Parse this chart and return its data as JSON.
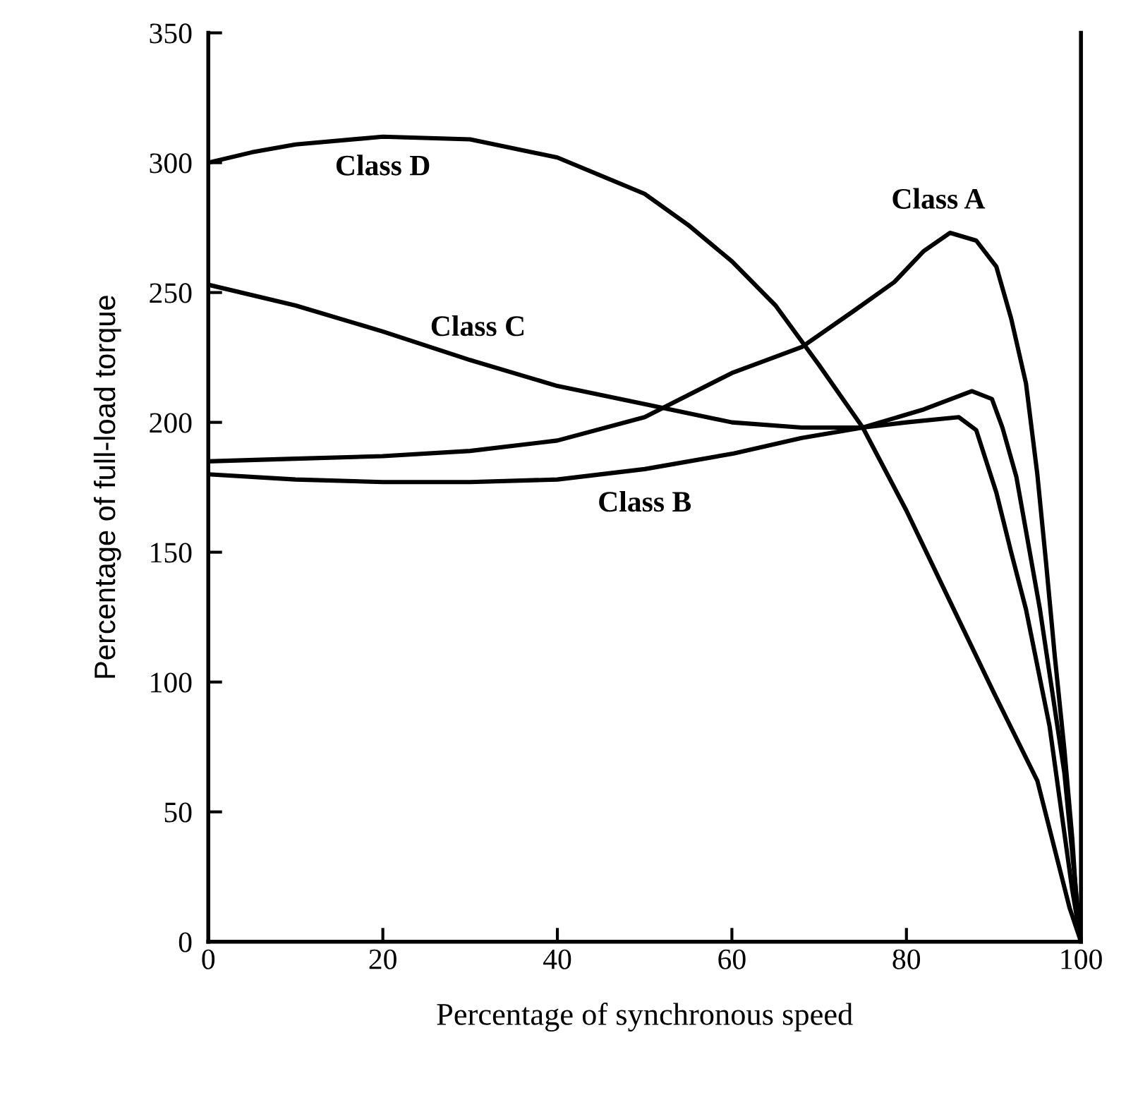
{
  "chart_data": {
    "type": "line",
    "xlabel": "Percentage of synchronous speed",
    "ylabel": "Percentage of full-load torque",
    "xlim": [
      0,
      100
    ],
    "ylim": [
      0,
      350
    ],
    "xticks": [
      0,
      20,
      40,
      60,
      80,
      100
    ],
    "yticks": [
      0,
      50,
      100,
      150,
      200,
      250,
      300,
      350
    ],
    "grid": false,
    "marker": "none",
    "line_style": "solid",
    "series": [
      {
        "name": "Class A",
        "color": "#000000",
        "x": [
          0,
          10,
          20,
          30,
          40,
          50,
          60,
          68,
          74,
          78.6,
          82,
          85,
          88,
          90.3,
          92,
          93.7,
          95,
          96,
          97,
          98.1,
          99,
          99.5,
          100
        ],
        "values": [
          185,
          186,
          187,
          189,
          193,
          202,
          219,
          229,
          243,
          254,
          266,
          273,
          270,
          260,
          240,
          215,
          180,
          146,
          110,
          74,
          40,
          15,
          0
        ]
      },
      {
        "name": "Class B",
        "color": "#000000",
        "x": [
          0,
          10,
          20,
          30,
          40,
          50,
          60.2,
          68,
          75,
          80,
          86,
          88,
          90.3,
          92,
          93.7,
          96.4,
          99,
          100
        ],
        "values": [
          180,
          178,
          177,
          177,
          178,
          182,
          188,
          194,
          198,
          200,
          202,
          197,
          173,
          150,
          128,
          83,
          20,
          0
        ]
      },
      {
        "name": "Class C",
        "color": "#000000",
        "x": [
          0,
          10,
          20,
          30,
          40,
          50,
          60,
          68,
          75,
          82,
          87.5,
          89.8,
          91,
          92.6,
          95.3,
          98.1,
          100
        ],
        "values": [
          253,
          245,
          235,
          224,
          214,
          207,
          200,
          198,
          198,
          205,
          212,
          209,
          198,
          179,
          128,
          65,
          0
        ]
      },
      {
        "name": "Class D",
        "color": "#000000",
        "x": [
          0,
          5,
          10,
          20,
          30,
          40,
          50,
          55,
          60,
          65,
          70,
          75,
          80,
          85,
          90,
          95,
          98.7,
          100
        ],
        "values": [
          300,
          304,
          307,
          310,
          309,
          302,
          288,
          276,
          262,
          245,
          222,
          198,
          166,
          131,
          96,
          62,
          13,
          0
        ]
      }
    ]
  }
}
